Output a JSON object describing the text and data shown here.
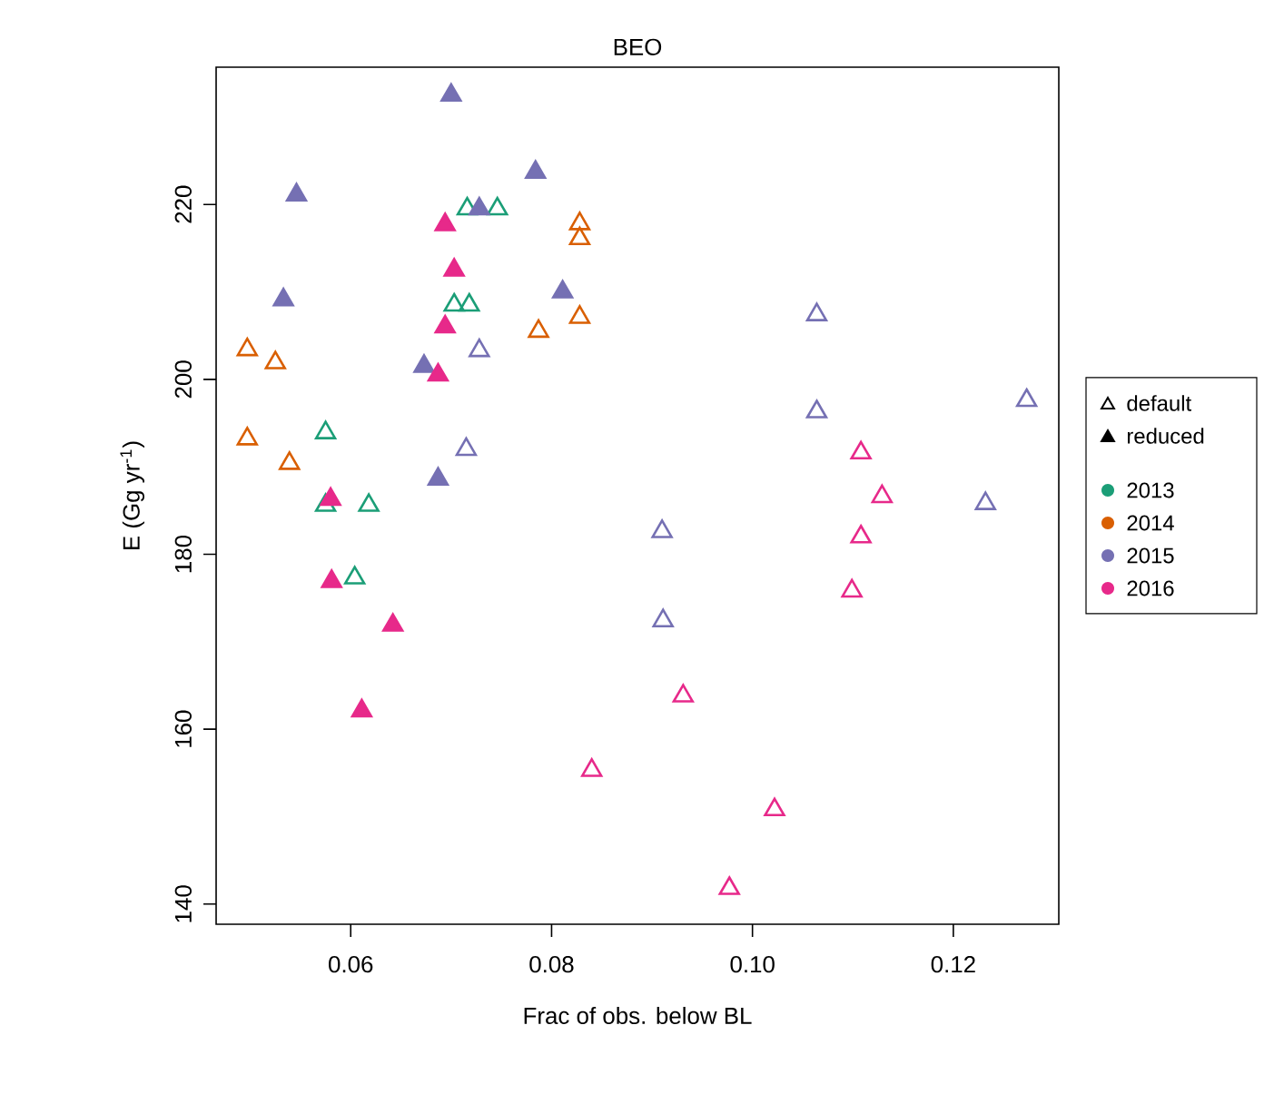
{
  "chart_data": {
    "type": "scatter",
    "title": "BEO",
    "xlabel": "Frac of obs. below BL",
    "ylabel": "E (Gg yr$^{-1}$)",
    "xlim": [
      0.0466,
      0.1305
    ],
    "ylim": [
      137.7,
      235.7
    ],
    "xticks": [
      0.06,
      0.08,
      {
        "value": 0.1,
        "label": "0.10"
      },
      0.12
    ],
    "yticks": [
      140,
      160,
      180,
      200,
      220
    ],
    "legend": "right",
    "annotations": [
      "default",
      "reduced"
    ],
    "series": [
      {
        "name": "2013",
        "color": "#1b9e77",
        "marker": "triangle",
        "x": [
          0.0716,
          0.0746,
          0.0703,
          0.0718,
          0.0575,
          0.0575,
          0.0618,
          0.0604
        ],
        "values": [
          219.5,
          219.5,
          208.5,
          208.5,
          193.9,
          185.6,
          185.6,
          177.3
        ]
      },
      {
        "name": "2014",
        "color": "#d95f02",
        "marker": "triangle",
        "x": [
          0.0828,
          0.0828,
          0.0828,
          0.0787,
          0.0497,
          0.0525,
          0.0497,
          0.0539
        ],
        "values": [
          217.8,
          216.1,
          207.1,
          205.5,
          203.4,
          201.9,
          193.2,
          190.4
        ]
      },
      {
        "name": "2015",
        "color": "#7570b3",
        "marker": "triangle",
        "x": [
          0.0728,
          0.0715,
          0.091,
          0.1064,
          0.1064,
          0.1273,
          0.1232,
          0.0911
        ],
        "values": [
          203.3,
          192.0,
          182.6,
          207.4,
          196.3,
          197.6,
          185.8,
          172.4
        ]
      },
      {
        "name": "2016",
        "color": "#e7298a",
        "marker": "triangle",
        "x": [
          0.1108,
          0.1129,
          0.1108,
          0.1099,
          0.0931,
          0.084,
          0.1022,
          0.0977
        ],
        "values": [
          191.6,
          186.6,
          182.0,
          175.8,
          163.8,
          155.3,
          150.8,
          141.8
        ]
      },
      {
        "color": "#7570b3",
        "marker": "triangle-filled",
        "x": [
          0.0546,
          0.0784,
          0.0533,
          0.0811,
          0.0673,
          0.0687,
          0.0728,
          0.07
        ],
        "values": [
          221.1,
          223.7,
          209.1,
          210.0,
          201.5,
          188.6,
          219.5,
          232.5
        ]
      },
      {
        "color": "#e7298a",
        "marker": "triangle-filled",
        "x": [
          0.0694,
          0.0703,
          0.0694,
          0.0687,
          0.058,
          0.0581,
          0.0642,
          0.0611
        ],
        "values": [
          217.7,
          212.5,
          206.0,
          200.5,
          186.3,
          176.9,
          171.9,
          162.1
        ]
      }
    ]
  }
}
